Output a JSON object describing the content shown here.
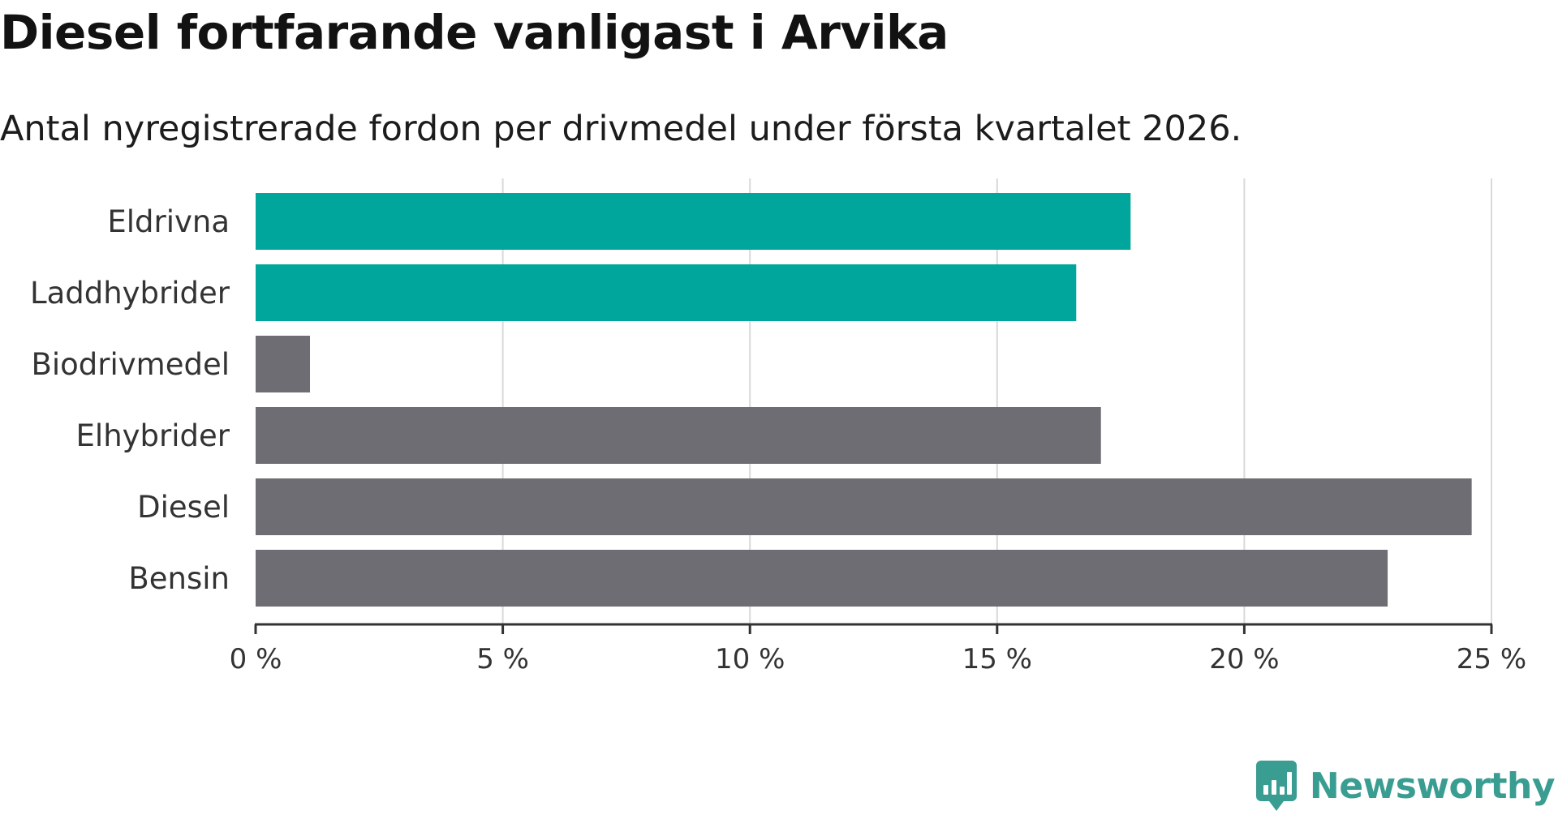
{
  "title": "Diesel fortfarande vanligast i Arvika",
  "subtitle": "Antal nyregistrerade fordon per drivmedel under första kvartalet 2026.",
  "chart_data": {
    "type": "bar",
    "orientation": "horizontal",
    "categories": [
      "Eldrivna",
      "Laddhybrider",
      "Biodrivmedel",
      "Elhybrider",
      "Diesel",
      "Bensin"
    ],
    "values": [
      17.7,
      16.6,
      1.1,
      17.1,
      24.6,
      22.9
    ],
    "unit": "%",
    "highlighted": [
      true,
      true,
      false,
      false,
      false,
      false
    ],
    "colors": {
      "highlight": "#00a59b",
      "default": "#6e6d73",
      "grid": "#d9d9d9",
      "axis": "#333333",
      "label": "#333333"
    },
    "xlim": [
      0,
      25
    ],
    "xticks": [
      0,
      5,
      10,
      15,
      20,
      25
    ],
    "xtick_labels": [
      "0 %",
      "5 %",
      "10 %",
      "15 %",
      "20 %",
      "25 %"
    ],
    "grid": true
  },
  "brand": {
    "name": "Newsworthy",
    "icon": "newsworthy-logo-icon",
    "color": "#3a9d91"
  }
}
